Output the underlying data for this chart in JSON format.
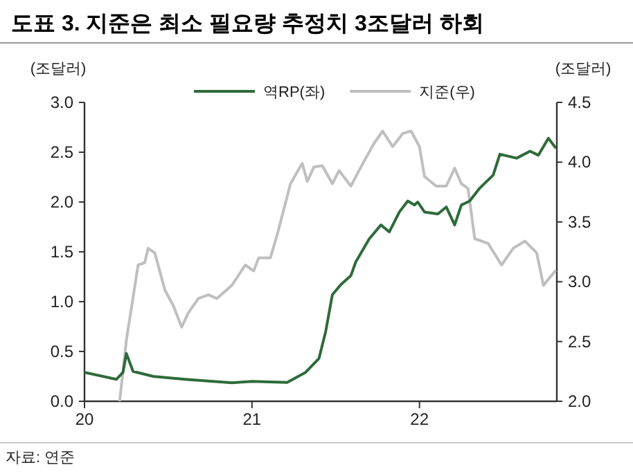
{
  "chart_data": {
    "type": "line",
    "title": "도표 3. 지준은 최소 필요량 추정치 3조달러 하회",
    "ylabel": "(조달러)",
    "y2label": "(조달러)",
    "annotations": [
      "자료: 연준"
    ],
    "xlim": [
      20,
      22.82
    ],
    "xticks": [
      20,
      21,
      22
    ],
    "ylim": [
      0,
      3
    ],
    "yticks": [
      {
        "value": 0,
        "label": "0.0"
      },
      {
        "value": 0.5,
        "label": "0.5"
      },
      {
        "value": 1,
        "label": "1.0"
      },
      {
        "value": 1.5,
        "label": "1.5"
      },
      {
        "value": 2,
        "label": "2.0"
      },
      {
        "value": 2.5,
        "label": "2.5"
      },
      {
        "value": 3,
        "label": "3.0"
      }
    ],
    "y2lim": [
      2,
      4.5
    ],
    "y2ticks": [
      {
        "value": 2,
        "label": "2.0"
      },
      {
        "value": 2.5,
        "label": "2.5"
      },
      {
        "value": 3,
        "label": "3.0"
      },
      {
        "value": 3.5,
        "label": "3.5"
      },
      {
        "value": 4,
        "label": "4.0"
      },
      {
        "value": 4.5,
        "label": "4.5"
      }
    ],
    "legend": "top",
    "grid": false,
    "marker": "none",
    "line_style": "solid",
    "series": [
      {
        "name": "역RP(좌)",
        "color": "#2e6b3a",
        "x": [
          20,
          20.19,
          20.23,
          20.25,
          20.29,
          20.41,
          20.6,
          20.88,
          21.0,
          21.21,
          21.32,
          21.4,
          21.44,
          21.48,
          21.53,
          21.59,
          21.62,
          21.7,
          21.77,
          21.82,
          21.88,
          21.93,
          21.97,
          21.99,
          22.03,
          22.11,
          22.16,
          22.21,
          22.25,
          22.3,
          22.36,
          22.44,
          22.48,
          22.58,
          22.66,
          22.71,
          22.77,
          22.81
        ],
        "values": [
          0.29,
          0.22,
          0.29,
          0.48,
          0.3,
          0.25,
          0.22,
          0.185,
          0.2,
          0.19,
          0.29,
          0.43,
          0.7,
          1.07,
          1.17,
          1.26,
          1.4,
          1.63,
          1.77,
          1.7,
          1.9,
          2.01,
          1.97,
          2.0,
          1.9,
          1.88,
          1.95,
          1.77,
          1.97,
          2.01,
          2.14,
          2.27,
          2.48,
          2.44,
          2.51,
          2.47,
          2.64,
          2.55
        ]
      },
      {
        "name": "지준(우)",
        "color": "#bfbfbf",
        "axis": "y2",
        "x": [
          20.21,
          20.25,
          20.32,
          20.36,
          20.38,
          20.42,
          20.48,
          20.53,
          20.58,
          20.62,
          20.68,
          20.74,
          20.79,
          20.88,
          20.96,
          21.01,
          21.04,
          21.11,
          21.15,
          21.23,
          21.3,
          21.33,
          21.37,
          21.42,
          21.48,
          21.52,
          21.59,
          21.67,
          21.73,
          21.78,
          21.84,
          21.9,
          21.95,
          22.0,
          22.03,
          22.1,
          22.16,
          22.21,
          22.25,
          22.29,
          22.33,
          22.41,
          22.49,
          22.56,
          22.63,
          22.7,
          22.74,
          22.81
        ],
        "values": [
          2.0,
          2.51,
          3.14,
          3.16,
          3.28,
          3.24,
          2.93,
          2.8,
          2.62,
          2.74,
          2.86,
          2.89,
          2.86,
          2.97,
          3.14,
          3.09,
          3.2,
          3.2,
          3.39,
          3.82,
          3.99,
          3.84,
          3.96,
          3.97,
          3.82,
          3.93,
          3.8,
          4.01,
          4.16,
          4.26,
          4.13,
          4.24,
          4.26,
          4.13,
          3.88,
          3.8,
          3.8,
          3.95,
          3.82,
          3.78,
          3.36,
          3.32,
          3.14,
          3.28,
          3.34,
          3.24,
          2.97,
          3.09
        ]
      }
    ]
  }
}
